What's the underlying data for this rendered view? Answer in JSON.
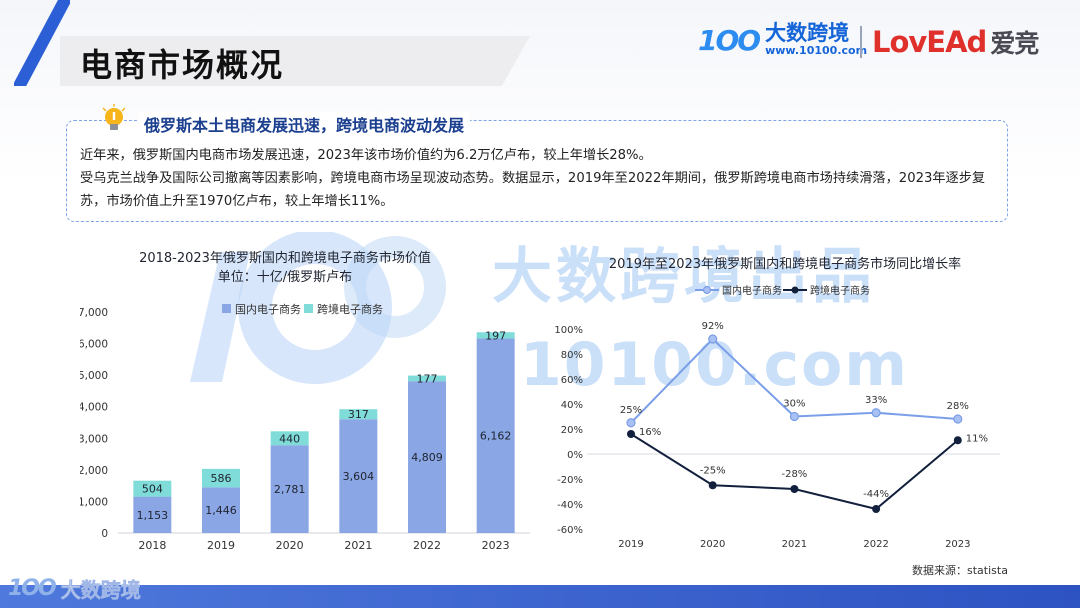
{
  "page": {
    "title": "电商市场概况",
    "source_label": "数据来源：statista"
  },
  "logos": {
    "brand1_mark": "1OO",
    "brand1_name": "大数跨境",
    "brand1_url": "www.10100.com",
    "brand2_name": "LovEAd",
    "brand2_cn": "爱竞"
  },
  "watermark": {
    "text": "大数跨境出品",
    "url": "10100.com"
  },
  "info": {
    "heading": "俄罗斯本土电商发展迅速，跨境电商波动发展",
    "line1": "近年来，俄罗斯国内电商市场发展迅速，2023年该市场价值约为6.2万亿卢布，较上年增长28%。",
    "line2": "受乌克兰战争及国际公司撤离等因素影响，跨境电商市场呈现波动态势。数据显示，2019年至2022年期间，俄罗斯跨境电商市场持续滑落，2023年逐步复苏，市场价值上升至1970亿卢布，较上年增长11%。"
  },
  "footer": {
    "mark": "1OO",
    "name": "大数跨境"
  },
  "colors": {
    "domestic_bar": "#8aa6e4",
    "crossborder_bar": "#7fdcd8",
    "domestic_line": "#7a9ee8",
    "crossborder_line": "#12203d"
  },
  "chart_data": [
    {
      "type": "bar",
      "stacked": true,
      "title": "2018-2023年俄罗斯国内和跨境电子商务市场价值",
      "subtitle": "单位：十亿/俄罗斯卢布",
      "categories": [
        "2018",
        "2019",
        "2020",
        "2021",
        "2022",
        "2023"
      ],
      "series": [
        {
          "name": "国内电子商务",
          "values": [
            1153,
            1446,
            2781,
            3604,
            4809,
            6162
          ]
        },
        {
          "name": "跨境电子商务",
          "values": [
            504,
            586,
            440,
            317,
            177,
            197
          ]
        }
      ],
      "ylim": [
        0,
        7000
      ],
      "yticks": [
        "0",
        "1,000",
        "2,000",
        "3,000",
        "4,000",
        "5,000",
        "6,000",
        "7,000"
      ],
      "data_labels": {
        "domestic": [
          "1,153",
          "1,446",
          "2,781",
          "3,604",
          "4,809",
          "6,162"
        ],
        "crossborder": [
          "504",
          "586",
          "440",
          "317",
          "177",
          "197"
        ]
      },
      "legend": "top"
    },
    {
      "type": "line",
      "title": "2019年至2023年俄罗斯国内和跨境电子商务市场同比增长率",
      "categories": [
        "2019",
        "2020",
        "2021",
        "2022",
        "2023"
      ],
      "series": [
        {
          "name": "国内电子商务",
          "values": [
            25,
            92,
            30,
            33,
            28
          ]
        },
        {
          "name": "跨境电子商务",
          "values": [
            16,
            -25,
            -28,
            -44,
            11
          ]
        }
      ],
      "ylim": [
        -60,
        100
      ],
      "yticks": [
        "-60%",
        "-40%",
        "-20%",
        "0%",
        "20%",
        "40%",
        "60%",
        "80%",
        "100%"
      ],
      "data_labels": {
        "domestic": [
          "25%",
          "92%",
          "30%",
          "33%",
          "28%"
        ],
        "crossborder": [
          "16%",
          "-25%",
          "-28%",
          "-44%",
          "11%"
        ]
      },
      "legend": "top",
      "grid": false
    }
  ]
}
